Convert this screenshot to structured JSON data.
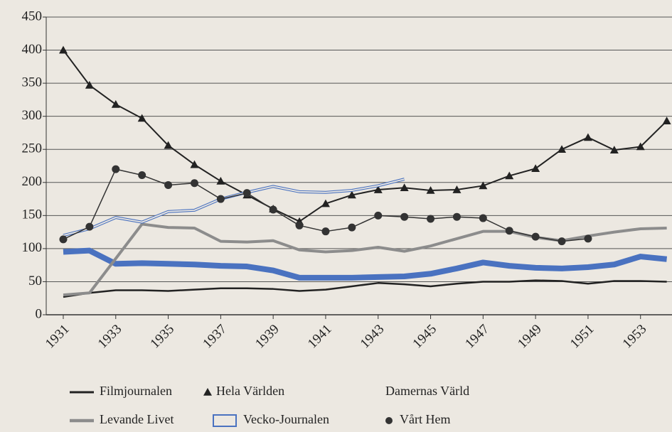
{
  "chart_data": {
    "type": "line",
    "x": [
      1931,
      1932,
      1933,
      1934,
      1935,
      1936,
      1937,
      1938,
      1939,
      1940,
      1941,
      1942,
      1943,
      1944,
      1945,
      1946,
      1947,
      1948,
      1949,
      1950,
      1951,
      1952,
      1953,
      1954
    ],
    "xlim": [
      1930.35,
      1954.2
    ],
    "xticks": [
      1931,
      1933,
      1935,
      1937,
      1939,
      1941,
      1943,
      1945,
      1947,
      1949,
      1951,
      1953
    ],
    "ylim": [
      0,
      450
    ],
    "yticks": [
      0,
      50,
      100,
      150,
      200,
      250,
      300,
      350,
      400,
      450
    ],
    "grid": true,
    "series": [
      {
        "name": "Filmjournalen",
        "color": "#222222",
        "width": 2.5,
        "marker": "none",
        "legend_swatch": "line",
        "values": [
          27,
          33,
          37,
          37,
          36,
          38,
          40,
          40,
          39,
          36,
          38,
          43,
          48,
          46,
          43,
          47,
          50,
          50,
          52,
          51,
          47,
          51,
          51,
          50
        ]
      },
      {
        "name": "Hela Världen",
        "color": "#222222",
        "width": 2,
        "marker": "triangle",
        "legend_swatch": "triangle",
        "values": [
          400,
          347,
          318,
          297,
          256,
          227,
          202,
          181,
          160,
          141,
          168,
          181,
          189,
          192,
          188,
          189,
          195,
          210,
          221,
          250,
          268,
          249,
          254,
          293
        ]
      },
      {
        "name": "Damernas Värld",
        "color": "#4a72c0",
        "width": 8,
        "marker": "none",
        "legend_swatch": "none",
        "values": [
          95,
          97,
          77,
          78,
          77,
          76,
          74,
          73,
          67,
          56,
          56,
          56,
          57,
          58,
          62,
          70,
          79,
          74,
          71,
          70,
          72,
          76,
          88,
          84
        ]
      },
      {
        "name": "Levande Livet",
        "color": "#8c8c8c",
        "width": 4,
        "marker": "none",
        "legend_swatch": "line",
        "values": [
          30,
          33,
          85,
          137,
          132,
          131,
          111,
          110,
          112,
          98,
          95,
          97,
          102,
          96,
          104,
          115,
          126,
          126,
          117,
          112,
          119,
          125,
          130,
          131
        ]
      },
      {
        "name": "Vecko-Journalen",
        "color": "#4a72c0",
        "width": 2,
        "marker": "outline",
        "legend_swatch": "outline",
        "values": [
          120,
          130,
          147,
          140,
          156,
          158,
          175,
          185,
          194,
          186,
          185,
          188,
          195,
          205,
          null,
          null,
          null,
          null,
          null,
          null,
          null,
          null,
          null,
          null
        ]
      },
      {
        "name": "Vårt Hem",
        "color": "#333333",
        "width": 1.5,
        "marker": "dot",
        "legend_swatch": "dot",
        "values": [
          114,
          133,
          220,
          211,
          196,
          199,
          175,
          184,
          159,
          135,
          126,
          132,
          150,
          148,
          145,
          148,
          146,
          127,
          118,
          111,
          115,
          null,
          null,
          null
        ]
      }
    ]
  }
}
